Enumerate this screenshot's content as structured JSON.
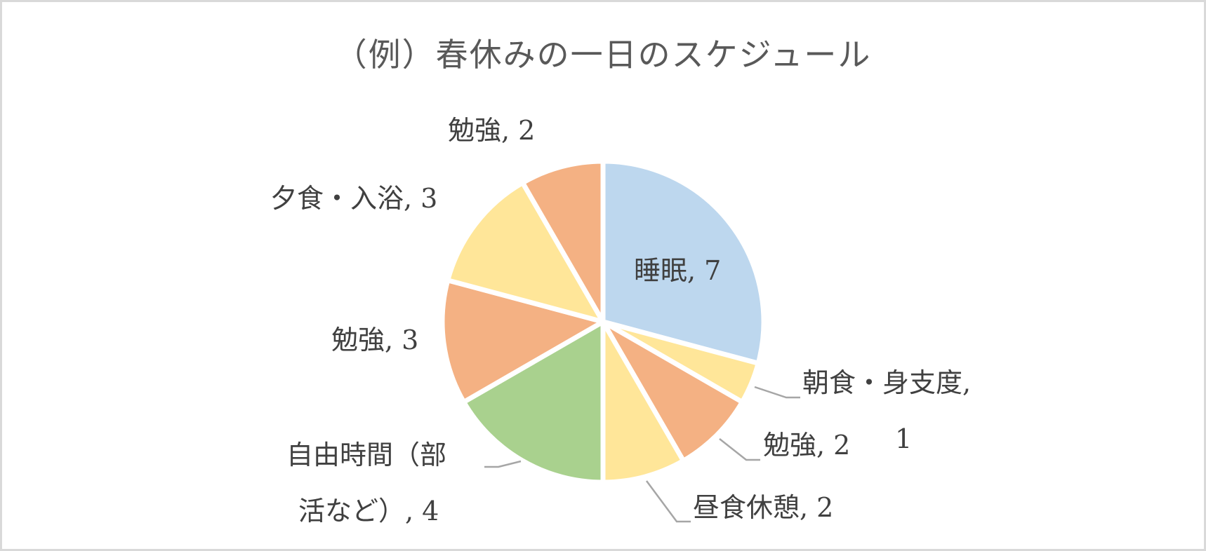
{
  "chart_data": {
    "type": "pie",
    "title": "（例）春休みの一日のスケジュール",
    "unit": "hours",
    "total": 24,
    "start_angle_deg": 0,
    "direction": "clockwise",
    "categories": [
      "睡眠",
      "朝食・身支度",
      "勉強",
      "昼食休憩",
      "自由時間（部活など）",
      "勉強",
      "夕食・入浴",
      "勉強"
    ],
    "values": [
      7,
      1,
      2,
      2,
      4,
      3,
      3,
      2
    ],
    "colors": [
      "#BDD7EE",
      "#FFE699",
      "#F4B183",
      "#FFE699",
      "#A9D18E",
      "#F4B183",
      "#FFE699",
      "#F4B183"
    ],
    "data_labels": [
      "睡眠, 7",
      "朝食・身支度, 1",
      "勉強, 2",
      "昼食休憩, 2",
      "自由時間（部活など）, 4",
      "勉強, 3",
      "夕食・入浴, 3",
      "勉強, 2"
    ],
    "legend": "none",
    "leader_lines": true
  },
  "title": "（例）春休みの一日のスケジュール",
  "labels": {
    "sleep": "睡眠, 7",
    "breakfast_line1": "朝食・身支度,",
    "breakfast_line2": "1",
    "study1": "勉強, 2",
    "lunch": "昼食休憩, 2",
    "free_line1": "自由時間（部",
    "free_line2": "活など）, 4",
    "study2": "勉強, 3",
    "dinner": "夕食・入浴, 3",
    "study3": "勉強, 2"
  },
  "colors": {
    "frame_border": "#D9D9D9",
    "title_text": "#595959",
    "label_text": "#404040",
    "leader_line": "#A6A6A6",
    "slice_separator": "#FFFFFF"
  }
}
